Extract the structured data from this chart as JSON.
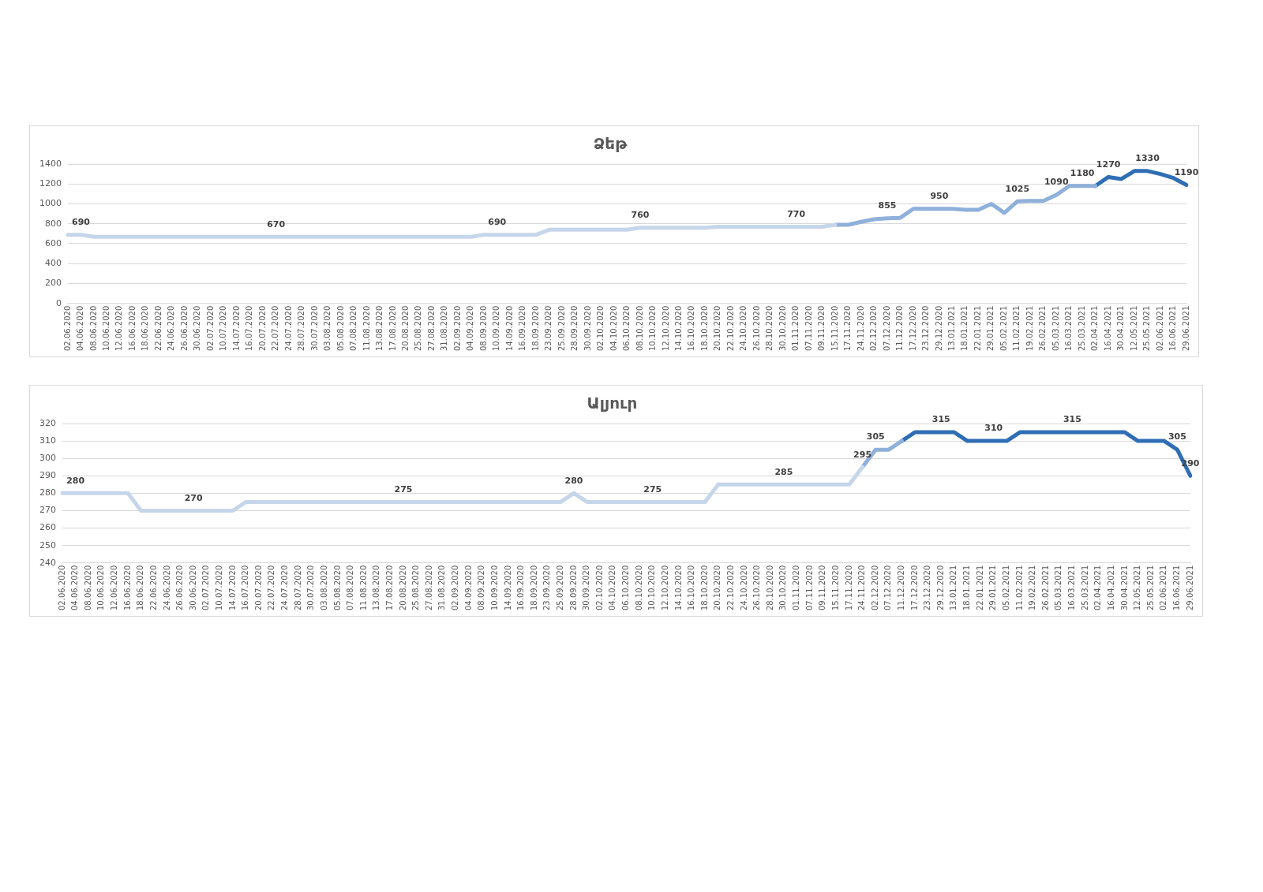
{
  "chart_data": [
    {
      "type": "line",
      "title": "Ձեթ",
      "grid": "y",
      "marker": "none",
      "categories": [
        "02.06.2020",
        "04.06.2020",
        "08.06.2020",
        "10.06.2020",
        "12.06.2020",
        "16.06.2020",
        "18.06.2020",
        "22.06.2020",
        "24.06.2020",
        "26.06.2020",
        "30.06.2020",
        "02.07.2020",
        "10.07.2020",
        "14.07.2020",
        "16.07.2020",
        "20.07.2020",
        "22.07.2020",
        "24.07.2020",
        "28.07.2020",
        "30.07.2020",
        "03.08.2020",
        "05.08.2020",
        "07.08.2020",
        "11.08.2020",
        "13.08.2020",
        "17.08.2020",
        "20.08.2020",
        "25.08.2020",
        "27.08.2020",
        "31.08.2020",
        "02.09.2020",
        "04.09.2020",
        "08.09.2020",
        "10.09.2020",
        "14.09.2020",
        "16.09.2020",
        "18.09.2020",
        "23.09.2020",
        "25.09.2020",
        "28.09.2020",
        "30.09.2020",
        "02.10.2020",
        "04.10.2020",
        "06.10.2020",
        "08.10.2020",
        "10.10.2020",
        "12.10.2020",
        "14.10.2020",
        "16.10.2020",
        "18.10.2020",
        "20.10.2020",
        "22.10.2020",
        "24.10.2020",
        "26.10.2020",
        "28.10.2020",
        "30.10.2020",
        "01.11.2020",
        "07.11.2020",
        "09.11.2020",
        "15.11.2020",
        "17.11.2020",
        "24.11.2020",
        "02.12.2020",
        "07.12.2020",
        "11.12.2020",
        "17.12.2020",
        "23.12.2020",
        "29.12.2020",
        "13.01.2021",
        "18.01.2021",
        "22.01.2021",
        "29.01.2021",
        "05.02.2021",
        "11.02.2021",
        "19.02.2021",
        "26.02.2021",
        "05.03.2021",
        "16.03.2021",
        "25.03.2021",
        "02.04.2021",
        "16.04.2021",
        "30.04.2021",
        "12.05.2021",
        "25.05.2021",
        "02.06.2021",
        "16.06.2021",
        "29.06.2021"
      ],
      "ylim": [
        0,
        1400
      ],
      "yticks": [
        0,
        200,
        400,
        600,
        800,
        1000,
        1200,
        1400
      ],
      "series": [
        {
          "color": "#c6d6ea",
          "values": [
            690,
            690,
            670,
            670,
            670,
            670,
            670,
            670,
            670,
            670,
            670,
            670,
            670,
            670,
            670,
            670,
            670,
            670,
            670,
            670,
            670,
            670,
            670,
            670,
            670,
            670,
            670,
            670,
            670,
            670,
            670,
            670,
            690,
            690,
            690,
            690,
            690,
            740,
            740,
            740,
            740,
            740,
            740,
            740,
            760,
            760,
            760,
            760,
            760,
            760,
            770,
            770,
            770,
            770,
            770,
            770,
            770,
            770,
            770,
            790,
            null,
            null,
            null,
            null,
            null,
            null,
            null,
            null,
            null,
            null,
            null,
            null,
            null,
            null,
            null,
            null,
            null,
            null,
            null,
            null,
            null,
            null,
            null,
            null,
            null,
            null,
            null
          ],
          "value_labels": [
            null,
            "690",
            null,
            null,
            null,
            null,
            null,
            null,
            null,
            null,
            null,
            null,
            null,
            null,
            null,
            null,
            "670",
            null,
            null,
            null,
            null,
            null,
            null,
            null,
            null,
            null,
            null,
            null,
            null,
            null,
            null,
            null,
            null,
            "690",
            null,
            null,
            null,
            null,
            null,
            null,
            null,
            null,
            null,
            null,
            "760",
            null,
            null,
            null,
            null,
            null,
            null,
            null,
            null,
            null,
            null,
            null,
            "770",
            null,
            null,
            null,
            null,
            null,
            null,
            null,
            null,
            null,
            null,
            null,
            null,
            null,
            null,
            null,
            null,
            null,
            null,
            null,
            null,
            null,
            null,
            null,
            null,
            null,
            null,
            null,
            null,
            null,
            null
          ]
        },
        {
          "color": "#8fb0da",
          "values": [
            null,
            null,
            null,
            null,
            null,
            null,
            null,
            null,
            null,
            null,
            null,
            null,
            null,
            null,
            null,
            null,
            null,
            null,
            null,
            null,
            null,
            null,
            null,
            null,
            null,
            null,
            null,
            null,
            null,
            null,
            null,
            null,
            null,
            null,
            null,
            null,
            null,
            null,
            null,
            null,
            null,
            null,
            null,
            null,
            null,
            null,
            null,
            null,
            null,
            null,
            null,
            null,
            null,
            null,
            null,
            null,
            null,
            null,
            null,
            790,
            790,
            820,
            845,
            855,
            860,
            950,
            950,
            950,
            950,
            940,
            940,
            1000,
            910,
            1025,
            1030,
            1030,
            1090,
            1180,
            1180,
            1180,
            null,
            null,
            null,
            null,
            null,
            null,
            null
          ],
          "value_labels": [
            null,
            null,
            null,
            null,
            null,
            null,
            null,
            null,
            null,
            null,
            null,
            null,
            null,
            null,
            null,
            null,
            null,
            null,
            null,
            null,
            null,
            null,
            null,
            null,
            null,
            null,
            null,
            null,
            null,
            null,
            null,
            null,
            null,
            null,
            null,
            null,
            null,
            null,
            null,
            null,
            null,
            null,
            null,
            null,
            null,
            null,
            null,
            null,
            null,
            null,
            null,
            null,
            null,
            null,
            null,
            null,
            null,
            null,
            null,
            null,
            null,
            null,
            null,
            "855",
            null,
            null,
            null,
            "950",
            null,
            null,
            null,
            null,
            null,
            "1025",
            null,
            null,
            "1090",
            null,
            "1180",
            null,
            null,
            null,
            null,
            null,
            null,
            null,
            null
          ]
        },
        {
          "color": "#2f6eb5",
          "values": [
            null,
            null,
            null,
            null,
            null,
            null,
            null,
            null,
            null,
            null,
            null,
            null,
            null,
            null,
            null,
            null,
            null,
            null,
            null,
            null,
            null,
            null,
            null,
            null,
            null,
            null,
            null,
            null,
            null,
            null,
            null,
            null,
            null,
            null,
            null,
            null,
            null,
            null,
            null,
            null,
            null,
            null,
            null,
            null,
            null,
            null,
            null,
            null,
            null,
            null,
            null,
            null,
            null,
            null,
            null,
            null,
            null,
            null,
            null,
            null,
            null,
            null,
            null,
            null,
            null,
            null,
            null,
            null,
            null,
            null,
            null,
            null,
            null,
            null,
            null,
            null,
            null,
            null,
            null,
            1180,
            1270,
            1250,
            1330,
            1330,
            1300,
            1260,
            1190
          ],
          "value_labels": [
            null,
            null,
            null,
            null,
            null,
            null,
            null,
            null,
            null,
            null,
            null,
            null,
            null,
            null,
            null,
            null,
            null,
            null,
            null,
            null,
            null,
            null,
            null,
            null,
            null,
            null,
            null,
            null,
            null,
            null,
            null,
            null,
            null,
            null,
            null,
            null,
            null,
            null,
            null,
            null,
            null,
            null,
            null,
            null,
            null,
            null,
            null,
            null,
            null,
            null,
            null,
            null,
            null,
            null,
            null,
            null,
            null,
            null,
            null,
            null,
            null,
            null,
            null,
            null,
            null,
            null,
            null,
            null,
            null,
            null,
            null,
            null,
            null,
            null,
            null,
            null,
            null,
            null,
            null,
            null,
            "1270",
            null,
            null,
            "1330",
            null,
            null,
            "1190"
          ]
        }
      ]
    },
    {
      "type": "line",
      "title": "Ալյուր",
      "grid": "y",
      "marker": "none",
      "categories": [
        "02.06.2020",
        "04.06.2020",
        "08.06.2020",
        "10.06.2020",
        "12.06.2020",
        "16.06.2020",
        "18.06.2020",
        "22.06.2020",
        "24.06.2020",
        "26.06.2020",
        "30.06.2020",
        "02.07.2020",
        "10.07.2020",
        "14.07.2020",
        "16.07.2020",
        "20.07.2020",
        "22.07.2020",
        "24.07.2020",
        "28.07.2020",
        "30.07.2020",
        "03.08.2020",
        "05.08.2020",
        "07.08.2020",
        "11.08.2020",
        "13.08.2020",
        "17.08.2020",
        "20.08.2020",
        "25.08.2020",
        "27.08.2020",
        "31.08.2020",
        "02.09.2020",
        "04.09.2020",
        "08.09.2020",
        "10.09.2020",
        "14.09.2020",
        "16.09.2020",
        "18.09.2020",
        "23.09.2020",
        "25.09.2020",
        "28.09.2020",
        "30.09.2020",
        "02.10.2020",
        "04.10.2020",
        "06.10.2020",
        "08.10.2020",
        "10.10.2020",
        "12.10.2020",
        "14.10.2020",
        "16.10.2020",
        "18.10.2020",
        "20.10.2020",
        "22.10.2020",
        "24.10.2020",
        "26.10.2020",
        "28.10.2020",
        "30.10.2020",
        "01.11.2020",
        "07.11.2020",
        "09.11.2020",
        "15.11.2020",
        "17.11.2020",
        "24.11.2020",
        "02.12.2020",
        "07.12.2020",
        "11.12.2020",
        "17.12.2020",
        "23.12.2020",
        "29.12.2020",
        "13.01.2021",
        "18.01.2021",
        "22.01.2021",
        "29.01.2021",
        "05.02.2021",
        "11.02.2021",
        "19.02.2021",
        "26.02.2021",
        "05.03.2021",
        "16.03.2021",
        "25.03.2021",
        "02.04.2021",
        "16.04.2021",
        "30.04.2021",
        "12.05.2021",
        "25.05.2021",
        "02.06.2021",
        "16.06.2021",
        "29.06.2021"
      ],
      "ylim": [
        240,
        320
      ],
      "yticks": [
        240,
        250,
        260,
        270,
        280,
        290,
        300,
        310,
        320
      ],
      "series": [
        {
          "color": "#c6d6ea",
          "values": [
            280,
            280,
            280,
            280,
            280,
            280,
            270,
            270,
            270,
            270,
            270,
            270,
            270,
            270,
            275,
            275,
            275,
            275,
            275,
            275,
            275,
            275,
            275,
            275,
            275,
            275,
            275,
            275,
            275,
            275,
            275,
            275,
            275,
            275,
            275,
            275,
            275,
            275,
            275,
            280,
            275,
            275,
            275,
            275,
            275,
            275,
            275,
            275,
            275,
            275,
            285,
            285,
            285,
            285,
            285,
            285,
            285,
            285,
            285,
            285,
            285,
            295,
            null,
            null,
            null,
            null,
            null,
            null,
            null,
            null,
            null,
            null,
            null,
            null,
            null,
            null,
            null,
            null,
            null,
            null,
            null,
            null,
            null,
            null,
            null,
            null,
            null
          ],
          "value_labels": [
            null,
            "280",
            null,
            null,
            null,
            null,
            null,
            null,
            null,
            null,
            "270",
            null,
            null,
            null,
            null,
            null,
            null,
            null,
            null,
            null,
            null,
            null,
            null,
            null,
            null,
            null,
            "275",
            null,
            null,
            null,
            null,
            null,
            null,
            null,
            null,
            null,
            null,
            null,
            null,
            "280",
            null,
            null,
            null,
            null,
            null,
            "275",
            null,
            null,
            null,
            null,
            null,
            null,
            null,
            null,
            null,
            "285",
            null,
            null,
            null,
            null,
            null,
            "295",
            null,
            null,
            null,
            null,
            null,
            null,
            null,
            null,
            null,
            null,
            null,
            null,
            null,
            null,
            null,
            null,
            null,
            null,
            null,
            null,
            null,
            null,
            null,
            null,
            null
          ]
        },
        {
          "color": "#8fb0da",
          "values": [
            null,
            null,
            null,
            null,
            null,
            null,
            null,
            null,
            null,
            null,
            null,
            null,
            null,
            null,
            null,
            null,
            null,
            null,
            null,
            null,
            null,
            null,
            null,
            null,
            null,
            null,
            null,
            null,
            null,
            null,
            null,
            null,
            null,
            null,
            null,
            null,
            null,
            null,
            null,
            null,
            null,
            null,
            null,
            null,
            null,
            null,
            null,
            null,
            null,
            null,
            null,
            null,
            null,
            null,
            null,
            null,
            null,
            null,
            null,
            null,
            null,
            295,
            305,
            305,
            310,
            null,
            null,
            null,
            null,
            null,
            null,
            null,
            null,
            null,
            null,
            null,
            null,
            null,
            null,
            null,
            null,
            null,
            null,
            null,
            null,
            null,
            null
          ],
          "value_labels": [
            null,
            null,
            null,
            null,
            null,
            null,
            null,
            null,
            null,
            null,
            null,
            null,
            null,
            null,
            null,
            null,
            null,
            null,
            null,
            null,
            null,
            null,
            null,
            null,
            null,
            null,
            null,
            null,
            null,
            null,
            null,
            null,
            null,
            null,
            null,
            null,
            null,
            null,
            null,
            null,
            null,
            null,
            null,
            null,
            null,
            null,
            null,
            null,
            null,
            null,
            null,
            null,
            null,
            null,
            null,
            null,
            null,
            null,
            null,
            null,
            null,
            null,
            "305",
            null,
            null,
            null,
            null,
            null,
            null,
            null,
            null,
            null,
            null,
            null,
            null,
            null,
            null,
            null,
            null,
            null,
            null,
            null,
            null,
            null,
            null,
            null,
            null
          ]
        },
        {
          "color": "#2f6eb5",
          "values": [
            null,
            null,
            null,
            null,
            null,
            null,
            null,
            null,
            null,
            null,
            null,
            null,
            null,
            null,
            null,
            null,
            null,
            null,
            null,
            null,
            null,
            null,
            null,
            null,
            null,
            null,
            null,
            null,
            null,
            null,
            null,
            null,
            null,
            null,
            null,
            null,
            null,
            null,
            null,
            null,
            null,
            null,
            null,
            null,
            null,
            null,
            null,
            null,
            null,
            null,
            null,
            null,
            null,
            null,
            null,
            null,
            null,
            null,
            null,
            null,
            null,
            null,
            null,
            null,
            310,
            315,
            315,
            315,
            315,
            310,
            310,
            310,
            310,
            315,
            315,
            315,
            315,
            315,
            315,
            315,
            315,
            315,
            310,
            310,
            310,
            305,
            290
          ],
          "value_labels": [
            null,
            null,
            null,
            null,
            null,
            null,
            null,
            null,
            null,
            null,
            null,
            null,
            null,
            null,
            null,
            null,
            null,
            null,
            null,
            null,
            null,
            null,
            null,
            null,
            null,
            null,
            null,
            null,
            null,
            null,
            null,
            null,
            null,
            null,
            null,
            null,
            null,
            null,
            null,
            null,
            null,
            null,
            null,
            null,
            null,
            null,
            null,
            null,
            null,
            null,
            null,
            null,
            null,
            null,
            null,
            null,
            null,
            null,
            null,
            null,
            null,
            null,
            null,
            null,
            null,
            null,
            null,
            "315",
            null,
            null,
            null,
            "310",
            null,
            null,
            null,
            null,
            null,
            "315",
            null,
            null,
            null,
            null,
            null,
            null,
            null,
            "305",
            "290"
          ]
        }
      ]
    }
  ]
}
